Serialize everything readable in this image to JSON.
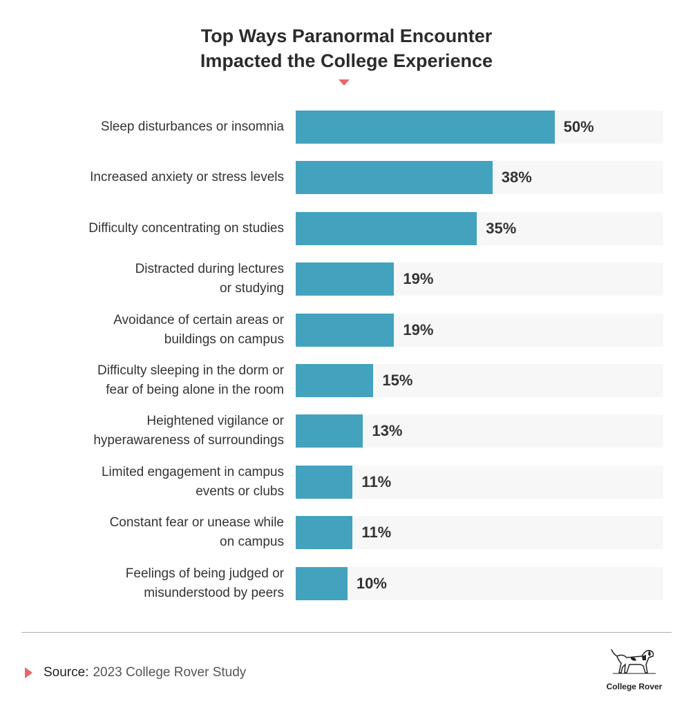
{
  "chart_data": {
    "type": "bar",
    "orientation": "horizontal",
    "title": "Top Ways Paranormal Encounter\nImpacted the College Experience",
    "categories": [
      "Sleep disturbances or insomnia",
      "Increased anxiety or stress levels",
      "Difficulty concentrating on studies",
      "Distracted during lectures\nor studying",
      "Avoidance of certain areas or\nbuildings on campus",
      "Difficulty sleeping in the dorm or\nfear of being alone in the room",
      "Heightened vigilance or\nhyperawareness of surroundings",
      "Limited engagement in campus\nevents or clubs",
      "Constant fear or unease while\non campus",
      "Feelings of being judged or\nmisunderstood by peers"
    ],
    "values": [
      50,
      38,
      35,
      19,
      19,
      15,
      13,
      11,
      11,
      10
    ],
    "value_labels": [
      "50%",
      "38%",
      "35%",
      "19%",
      "19%",
      "15%",
      "13%",
      "11%",
      "11%",
      "10%"
    ],
    "unit": "%",
    "xlim": [
      0,
      71
    ],
    "grid": false,
    "colors": {
      "bar": "#43a2be",
      "track": "#f7f7f7",
      "accent": "#e8676b"
    }
  },
  "footer": {
    "source_label": "Source:",
    "source_text": "2023 College Rover Study",
    "logo_text": "College Rover"
  }
}
